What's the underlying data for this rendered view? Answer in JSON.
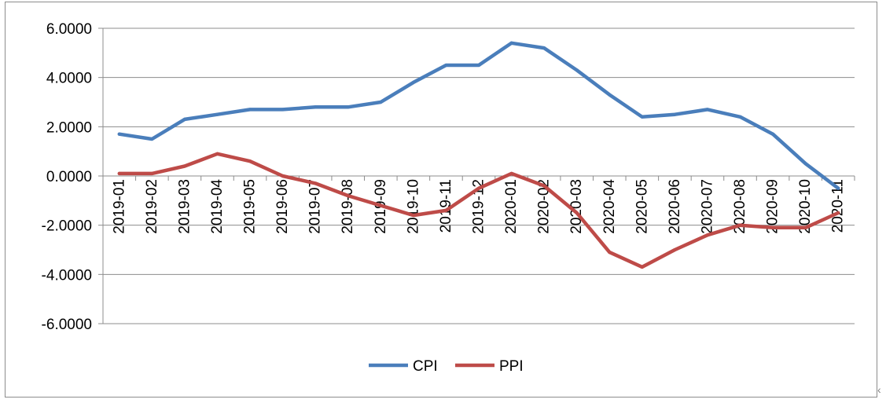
{
  "chart_data": {
    "type": "line",
    "title": "",
    "xlabel": "",
    "ylabel": "",
    "ylim": [
      -6,
      6
    ],
    "yticks": [
      6,
      4,
      2,
      0,
      -2,
      -4,
      -6
    ],
    "ytick_labels": [
      "6.0000",
      "4.0000",
      "2.0000",
      "0.0000",
      "-2.0000",
      "-4.0000",
      "-6.0000"
    ],
    "grid": true,
    "legend_position": "bottom",
    "categories": [
      "2019-01",
      "2019-02",
      "2019-03",
      "2019-04",
      "2019-05",
      "2019-06",
      "2019-07",
      "2019-08",
      "2019-09",
      "2019-10",
      "2019-11",
      "2019-12",
      "2020-01",
      "2020-02",
      "2020-03",
      "2020-04",
      "2020-05",
      "2020-06",
      "2020-07",
      "2020-08",
      "2020-09",
      "2020-10",
      "2020-11"
    ],
    "series": [
      {
        "name": "CPI",
        "color": "#4a7ebb",
        "values": [
          1.7,
          1.5,
          2.3,
          2.5,
          2.7,
          2.7,
          2.8,
          2.8,
          3.0,
          3.8,
          4.5,
          4.5,
          5.4,
          5.2,
          4.3,
          3.3,
          2.4,
          2.5,
          2.7,
          2.4,
          1.7,
          0.5,
          -0.5
        ]
      },
      {
        "name": "PPI",
        "color": "#be4b48",
        "values": [
          0.1,
          0.1,
          0.4,
          0.9,
          0.6,
          0.0,
          -0.3,
          -0.8,
          -1.2,
          -1.6,
          -1.4,
          -0.5,
          0.1,
          -0.4,
          -1.5,
          -3.1,
          -3.7,
          -3.0,
          -2.4,
          -2.0,
          -2.1,
          -2.1,
          -1.5
        ]
      }
    ]
  },
  "corner_mark": "‹"
}
